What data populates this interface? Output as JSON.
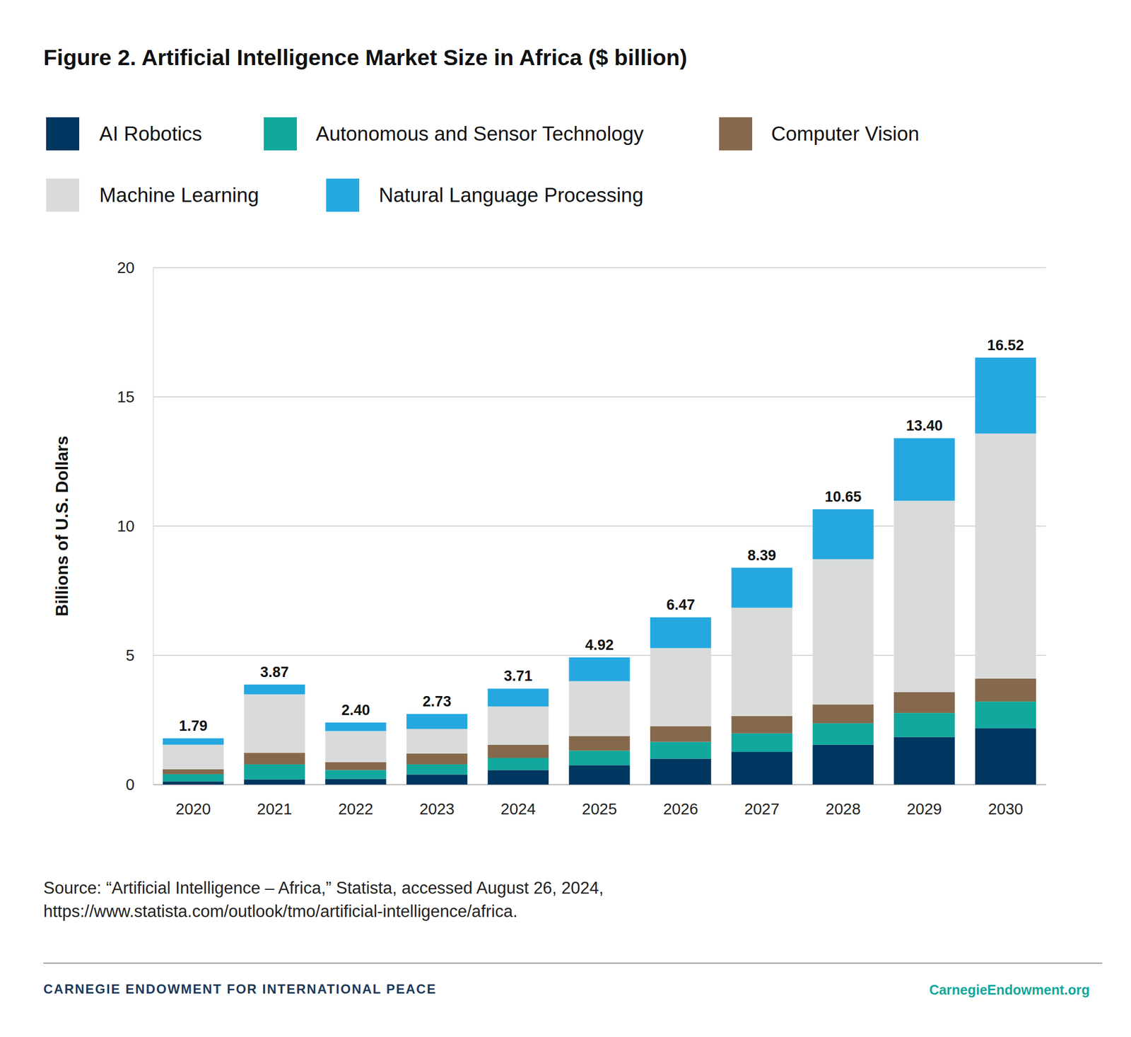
{
  "chart_data": {
    "type": "bar",
    "stacked": true,
    "grid": true,
    "title": "Figure 2. Artificial Intelligence Market Size in Africa ($ billion)",
    "y_label": "Billions of U.S. Dollars",
    "categories": [
      "2020",
      "2021",
      "2022",
      "2023",
      "2024",
      "2025",
      "2026",
      "2027",
      "2028",
      "2029",
      "2030"
    ],
    "series": [
      {
        "name": "AI Robotics",
        "color": "#003761",
        "values": [
          0.12,
          0.2,
          0.22,
          0.39,
          0.56,
          0.75,
          1.0,
          1.26,
          1.54,
          1.84,
          2.18
        ]
      },
      {
        "name": "Autonomous and Sensor Technology",
        "color": "#12a89d",
        "values": [
          0.28,
          0.58,
          0.34,
          0.39,
          0.47,
          0.56,
          0.65,
          0.72,
          0.83,
          0.93,
          1.03
        ]
      },
      {
        "name": "Computer Vision",
        "color": "#86694d",
        "values": [
          0.19,
          0.45,
          0.31,
          0.42,
          0.51,
          0.56,
          0.61,
          0.67,
          0.73,
          0.81,
          0.89
        ]
      },
      {
        "name": "Machine Learning",
        "color": "#d9dbda",
        "values": [
          0.95,
          2.26,
          1.2,
          0.95,
          1.48,
          2.13,
          3.02,
          4.19,
          5.62,
          7.4,
          9.48
        ]
      },
      {
        "name": "Natural Language Processing",
        "color": "#25a8e0",
        "values": [
          0.25,
          0.38,
          0.33,
          0.58,
          0.69,
          0.92,
          1.19,
          1.55,
          1.93,
          2.42,
          2.94
        ]
      }
    ],
    "totals": [
      1.79,
      3.87,
      2.4,
      2.73,
      3.71,
      4.92,
      6.47,
      8.39,
      10.65,
      13.4,
      16.52
    ],
    "total_labels": [
      "1.79",
      "3.87",
      "2.40",
      "2.73",
      "3.71",
      "4.92",
      "6.47",
      "8.39",
      "10.65",
      "13.40",
      "16.52"
    ],
    "ylim": [
      0,
      20
    ],
    "yticks": [
      0,
      5,
      10,
      15,
      20
    ],
    "source_lines": [
      "Source: “Artificial Intelligence – Africa,” Statista, accessed August 26, 2024,",
      "https://www.statista.com/outlook/tmo/artificial-intelligence/africa."
    ],
    "footer_left": "CARNEGIE ENDOWMENT FOR INTERNATIONAL PEACE",
    "footer_right": "CarnegieEndowment.org"
  }
}
